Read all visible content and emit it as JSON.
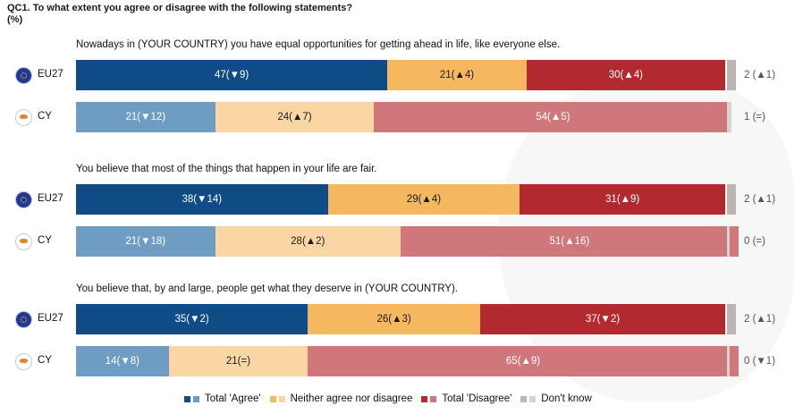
{
  "title_line1": "QC1. To what extent you agree or disagree with the following statements?",
  "title_line2": "(%)",
  "colors": {
    "agree_eu": "#0f4c86",
    "agree_cy": "#6f9cc3",
    "neither_eu": "#f5b860",
    "neither_cy": "#f9d6a3",
    "disagree_eu": "#b02a30",
    "disagree_cy": "#d0777c",
    "dk_eu": "#bdb5b1",
    "dk_cy": "#d9d3cf"
  },
  "legend": {
    "agree": "Total 'Agree'",
    "neither": "Neither agree nor disagree",
    "disagree": "Total 'Disagree'",
    "dk": "Don't know"
  },
  "chart_data": {
    "type": "bar",
    "orientation": "horizontal-stacked",
    "unit": "%",
    "categories": [
      "Total 'Agree'",
      "Neither agree nor disagree",
      "Total 'Disagree'",
      "Don't know"
    ],
    "statements": [
      {
        "text": "Nowadays in (YOUR COUNTRY) you have equal opportunities for getting ahead in life, like everyone else.",
        "rows": [
          {
            "label": "EU27",
            "flag": "eu-flag-icon",
            "values": [
              47,
              21,
              30,
              2
            ],
            "labels": [
              "47(▼9)",
              "21(▲4)",
              "30(▲4)",
              "2 (▲1)"
            ]
          },
          {
            "label": "CY",
            "flag": "cyprus-flag-icon",
            "values": [
              21,
              24,
              54,
              1
            ],
            "labels": [
              "21(▼12)",
              "24(▲7)",
              "54(▲5)",
              "1 (=)"
            ]
          }
        ]
      },
      {
        "text": "You believe that most of the things that happen in your life are fair.",
        "rows": [
          {
            "label": "EU27",
            "flag": "eu-flag-icon",
            "values": [
              38,
              29,
              31,
              2
            ],
            "labels": [
              "38(▼14)",
              "29(▲4)",
              "31(▲9)",
              "2 (▲1)"
            ]
          },
          {
            "label": "CY",
            "flag": "cyprus-flag-icon",
            "values": [
              21,
              28,
              51,
              0
            ],
            "labels": [
              "21(▼18)",
              "28(▲2)",
              "51(▲16)",
              "0 (=)"
            ]
          }
        ]
      },
      {
        "text": "You believe that, by and large, people get what they deserve in (YOUR COUNTRY).",
        "rows": [
          {
            "label": "EU27",
            "flag": "eu-flag-icon",
            "values": [
              35,
              26,
              37,
              2
            ],
            "labels": [
              "35(▼2)",
              "26(▲3)",
              "37(▼2)",
              "2 (▲1)"
            ]
          },
          {
            "label": "CY",
            "flag": "cyprus-flag-icon",
            "values": [
              14,
              21,
              65,
              0
            ],
            "labels": [
              "14(▼8)",
              "21(=)",
              "65(▲9)",
              "0 (▼1)"
            ]
          }
        ]
      }
    ]
  }
}
